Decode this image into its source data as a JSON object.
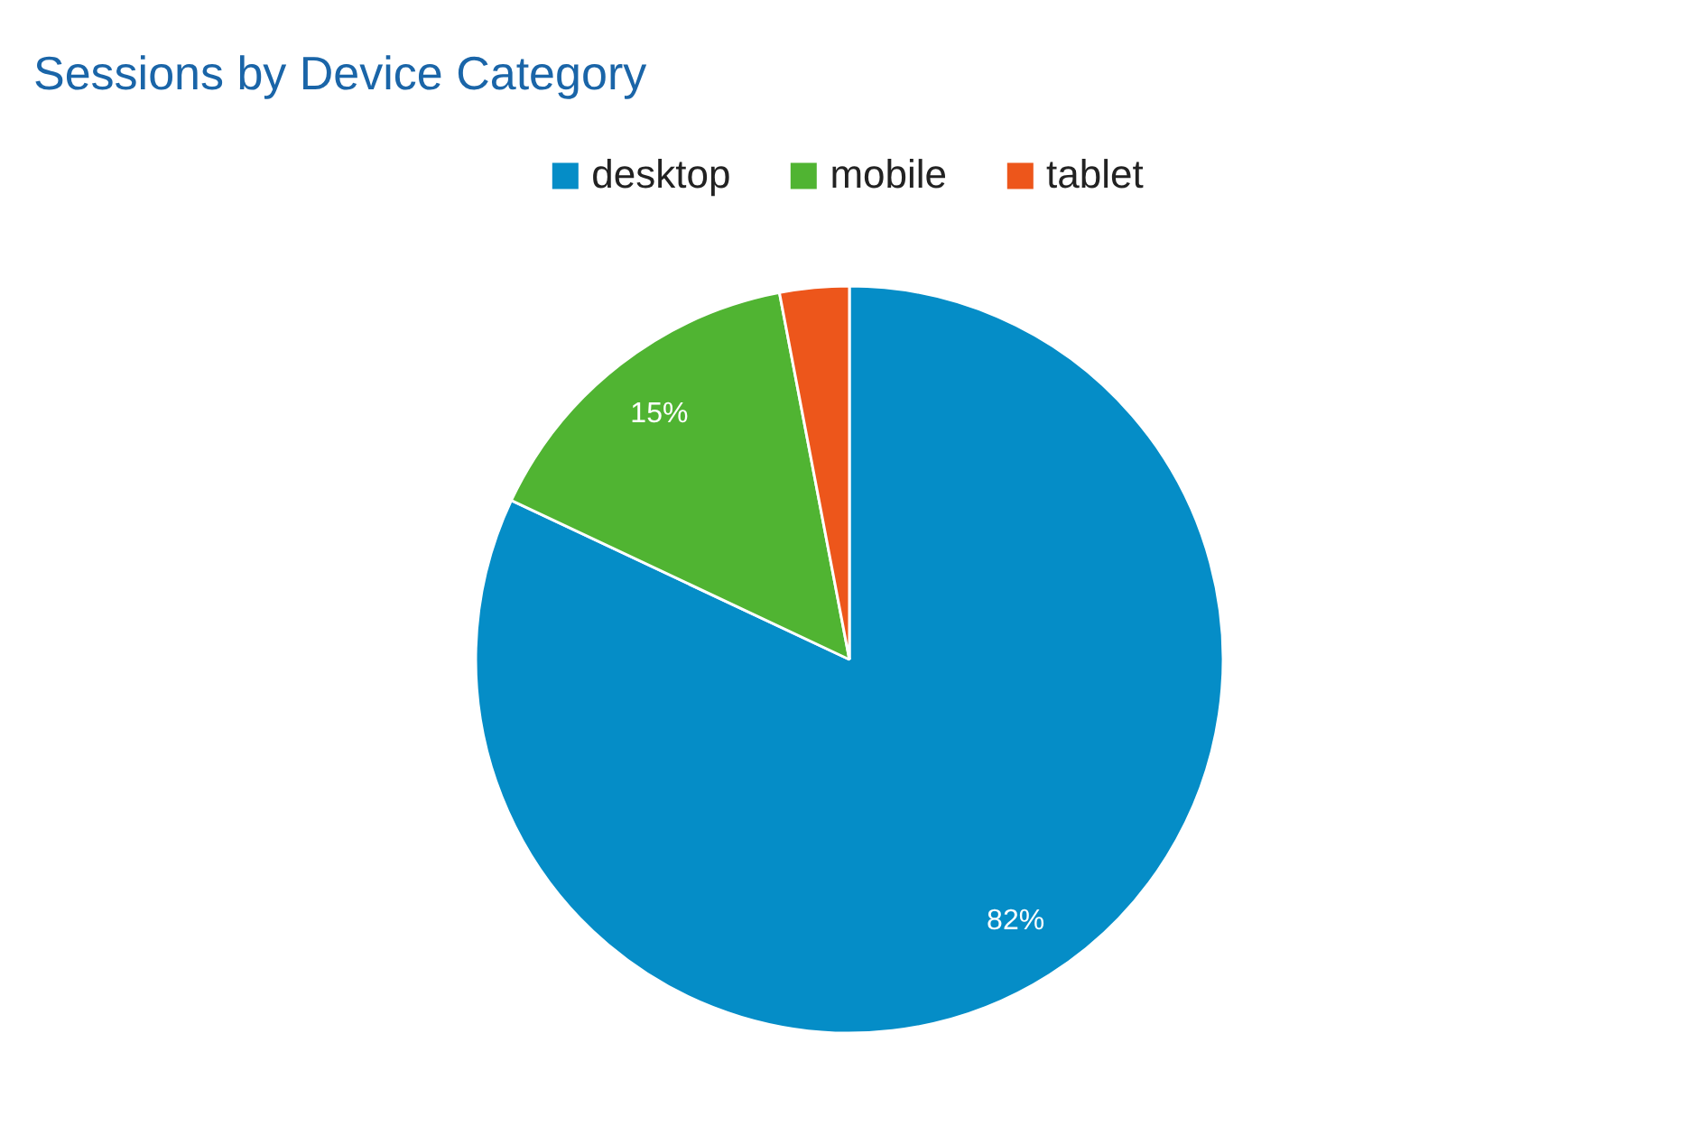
{
  "chart_data": {
    "type": "pie",
    "title": "Sessions by Device Category",
    "categories": [
      "desktop",
      "mobile",
      "tablet"
    ],
    "values": [
      82,
      15,
      3
    ],
    "colors": [
      "#058dc7",
      "#50b432",
      "#ed561b"
    ],
    "value_labels": [
      "82%",
      "15%",
      null
    ],
    "legend": "top"
  }
}
